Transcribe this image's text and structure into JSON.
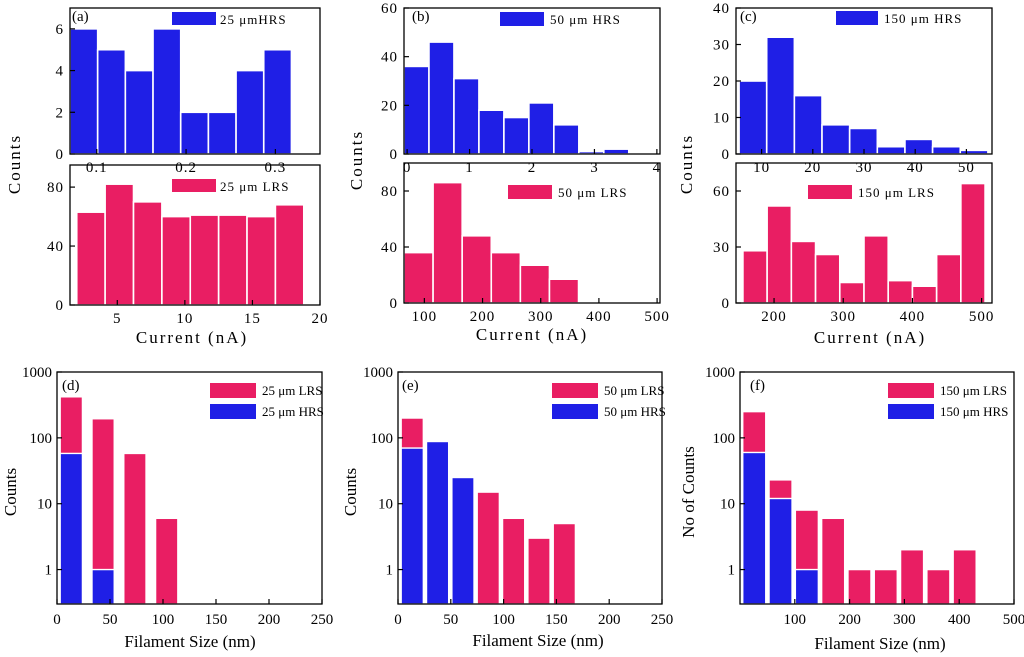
{
  "chart_data": [
    {
      "type": "bar",
      "id": "a",
      "panel_label": "(a)",
      "ylabel": "Counts",
      "xlabel": "Current (nA)",
      "top": {
        "legend": "25 μmHRS",
        "color": "#1f1fe6",
        "xlim": [
          0.07,
          0.35
        ],
        "ylim": [
          0,
          7
        ],
        "xticks": [
          0.1,
          0.2,
          0.3
        ],
        "xtick_labels": [
          "0.1",
          "0.2",
          "0.3"
        ],
        "yticks": [
          0,
          2,
          4,
          6
        ],
        "ytick_labels": [
          "0",
          "2",
          "4",
          "6"
        ],
        "bin_starts": [
          0.07,
          0.101,
          0.132,
          0.163,
          0.194,
          0.225,
          0.256,
          0.287
        ],
        "bin_width": 0.031,
        "values": [
          6,
          5,
          4,
          6,
          2,
          2,
          4,
          5
        ]
      },
      "bottom": {
        "legend": "25 μm LRS",
        "color": "#e91e63",
        "xlim": [
          1.5,
          20
        ],
        "ylim": [
          0,
          95
        ],
        "xticks": [
          5,
          10,
          15,
          20
        ],
        "xtick_labels": [
          "5",
          "10",
          "15",
          "20"
        ],
        "yticks": [
          0,
          40,
          80
        ],
        "ytick_labels": [
          "0",
          "40",
          "80"
        ],
        "bin_starts": [
          2.0,
          4.1,
          6.2,
          8.3,
          10.4,
          12.5,
          14.6,
          16.7
        ],
        "bin_width": 2.1,
        "values": [
          63,
          82,
          70,
          60,
          61,
          61,
          60,
          68
        ]
      }
    },
    {
      "type": "bar",
      "id": "b",
      "panel_label": "(b)",
      "ylabel": "Counts",
      "xlabel": "Current (nA)",
      "top": {
        "legend": "50 μm HRS",
        "color": "#1f1fe6",
        "xlim": [
          -0.05,
          4.05
        ],
        "ylim": [
          0,
          60
        ],
        "xticks": [
          0,
          1,
          2,
          3,
          4
        ],
        "xtick_labels": [
          "0",
          "1",
          "2",
          "3",
          "4"
        ],
        "yticks": [
          0,
          20,
          40,
          60
        ],
        "ytick_labels": [
          "0",
          "20",
          "40",
          "60"
        ],
        "bin_starts": [
          -0.05,
          0.35,
          0.75,
          1.15,
          1.55,
          1.95,
          2.35,
          2.75,
          3.15
        ],
        "bin_width": 0.4,
        "values": [
          36,
          46,
          31,
          18,
          15,
          21,
          12,
          1,
          2
        ]
      },
      "bottom": {
        "legend": "50 μm LRS",
        "color": "#e91e63",
        "xlim": [
          65,
          505
        ],
        "ylim": [
          0,
          100
        ],
        "xticks": [
          100,
          200,
          300,
          400,
          500
        ],
        "xtick_labels": [
          "100",
          "200",
          "300",
          "400",
          "500"
        ],
        "yticks": [
          0,
          40,
          80
        ],
        "ytick_labels": [
          "0",
          "40",
          "80"
        ],
        "bin_starts": [
          65,
          115,
          165,
          215,
          265,
          315
        ],
        "bin_width": 50,
        "values": [
          36,
          86,
          48,
          36,
          27,
          17
        ]
      }
    },
    {
      "type": "bar",
      "id": "c",
      "panel_label": "(c)",
      "ylabel": "Counts",
      "xlabel": "Current (nA)",
      "top": {
        "legend": "150 μm HRS",
        "color": "#1f1fe6",
        "xlim": [
          5,
          55
        ],
        "ylim": [
          0,
          40
        ],
        "xticks": [
          10,
          20,
          30,
          40,
          50
        ],
        "xtick_labels": [
          "10",
          "20",
          "30",
          "40",
          "50"
        ],
        "yticks": [
          0,
          10,
          20,
          30,
          40
        ],
        "ytick_labels": [
          "0",
          "10",
          "20",
          "30",
          "40"
        ],
        "bin_starts": [
          5.6,
          11.0,
          16.4,
          21.8,
          27.2,
          32.6,
          38.0,
          43.4,
          48.8
        ],
        "bin_width": 5.4,
        "values": [
          20,
          32,
          16,
          8,
          7,
          2,
          4,
          2,
          1
        ]
      },
      "bottom": {
        "legend": "150 μm LRS",
        "color": "#e91e63",
        "xlim": [
          145,
          515
        ],
        "ylim": [
          0,
          75
        ],
        "xticks": [
          200,
          300,
          400,
          500
        ],
        "xtick_labels": [
          "200",
          "300",
          "400",
          "500"
        ],
        "yticks": [
          0,
          30,
          60
        ],
        "ytick_labels": [
          "0",
          "30",
          "60"
        ],
        "bin_starts": [
          155,
          190,
          225,
          260,
          295,
          330,
          365,
          400,
          435,
          470
        ],
        "bin_width": 35,
        "values": [
          28,
          52,
          33,
          26,
          11,
          36,
          12,
          9,
          26,
          64
        ]
      }
    },
    {
      "type": "bar",
      "id": "d",
      "scale": "log",
      "panel_label": "(d)",
      "ylabel": "Counts",
      "xlabel": "Filament Size (nm)",
      "xlim": [
        0,
        250
      ],
      "ylim": [
        0.3,
        1000
      ],
      "xticks": [
        0,
        50,
        100,
        150,
        200,
        250
      ],
      "xtick_labels": [
        "0",
        "50",
        "100",
        "150",
        "200",
        "250"
      ],
      "yticks": [
        1,
        10,
        100,
        1000
      ],
      "ytick_labels": [
        "1",
        "10",
        "100",
        "1000"
      ],
      "legend": [
        "25 μm LRS",
        "25 μm HRS"
      ],
      "colors": [
        "#e91e63",
        "#1f1fe6"
      ],
      "bin_width": 21,
      "bin_starts": [
        3,
        33,
        63,
        93
      ],
      "lrs": [
        420,
        195,
        58,
        6
      ],
      "hrs": [
        58,
        1,
        null,
        null
      ]
    },
    {
      "type": "bar",
      "id": "e",
      "scale": "log",
      "panel_label": "(e)",
      "ylabel": "Counts",
      "xlabel": "Filament Size (nm)",
      "xlim": [
        0,
        250
      ],
      "ylim": [
        0.3,
        1000
      ],
      "xticks": [
        0,
        50,
        100,
        150,
        200,
        250
      ],
      "xtick_labels": [
        "0",
        "50",
        "100",
        "150",
        "200",
        "250"
      ],
      "yticks": [
        1,
        10,
        100,
        1000
      ],
      "ytick_labels": [
        "1",
        "10",
        "100",
        "1000"
      ],
      "legend": [
        "50 μm LRS",
        "50 μm HRS"
      ],
      "colors": [
        "#e91e63",
        "#1f1fe6"
      ],
      "bin_width": 21,
      "bin_starts": [
        3,
        27,
        51,
        75,
        99,
        123,
        147
      ],
      "lrs": [
        200,
        null,
        null,
        15,
        6,
        3,
        5
      ],
      "hrs": [
        70,
        88,
        25,
        null,
        null,
        null,
        null
      ]
    },
    {
      "type": "bar",
      "id": "f",
      "scale": "log",
      "panel_label": "(f)",
      "ylabel": "No of Counts",
      "xlabel": "Filament Size (nm)",
      "xlim": [
        0,
        500
      ],
      "ylim": [
        0.3,
        1000
      ],
      "xticks": [
        100,
        200,
        300,
        400,
        500
      ],
      "xtick_labels": [
        "100",
        "200",
        "300",
        "400",
        "500"
      ],
      "yticks": [
        1,
        10,
        100,
        1000
      ],
      "ytick_labels": [
        "1",
        "10",
        "100",
        "1000"
      ],
      "legend": [
        "150 μm LRS",
        "150 μm HRS"
      ],
      "colors": [
        "#e91e63",
        "#1f1fe6"
      ],
      "bin_width": 42,
      "bin_starts": [
        5,
        53,
        101,
        149,
        197,
        245,
        293,
        341,
        389
      ],
      "lrs": [
        250,
        23,
        8,
        6,
        1,
        1,
        2,
        1,
        2
      ],
      "hrs": [
        60,
        12,
        1,
        null,
        null,
        null,
        null,
        null,
        null
      ]
    }
  ]
}
